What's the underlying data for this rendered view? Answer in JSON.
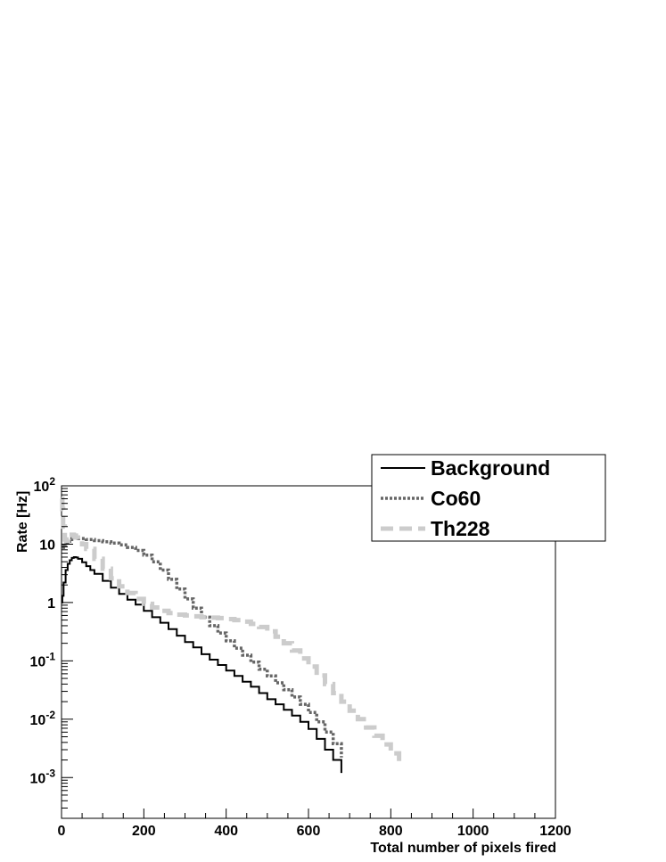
{
  "chart_data": {
    "type": "line",
    "title": "",
    "xlabel": "Total number of pixels fired",
    "ylabel": "Rate [Hz]",
    "xlim": [
      0,
      1200
    ],
    "ylim": [
      0.0002,
      100
    ],
    "yscale": "log",
    "grid": false,
    "legend_position": "top-right",
    "x_ticks": [
      0,
      200,
      400,
      600,
      800,
      1000,
      1200
    ],
    "x_tick_labels": [
      "0",
      "200",
      "400",
      "600",
      "800",
      "1000",
      "1200"
    ],
    "y_ticks": [
      0.001,
      0.01,
      0.1,
      1,
      10,
      100
    ],
    "y_tick_labels": [
      {
        "base": "10",
        "exp": "-3"
      },
      {
        "base": "10",
        "exp": "-2"
      },
      {
        "base": "10",
        "exp": "-1"
      },
      {
        "base": "1",
        "exp": ""
      },
      {
        "base": "10",
        "exp": ""
      },
      {
        "base": "10",
        "exp": "2"
      }
    ],
    "series": [
      {
        "name": "Background",
        "color": "#000000",
        "style": "solid",
        "x": [
          0,
          2,
          5,
          10,
          15,
          20,
          25,
          30,
          35,
          40,
          50,
          60,
          70,
          80,
          100,
          120,
          140,
          160,
          180,
          200,
          220,
          240,
          260,
          280,
          300,
          320,
          340,
          360,
          380,
          400,
          420,
          440,
          460,
          480,
          500,
          520,
          540,
          560,
          580,
          600,
          620,
          640,
          660,
          680
        ],
        "y": [
          1.0,
          1.3,
          2.2,
          3.6,
          4.6,
          5.3,
          5.8,
          6.0,
          5.9,
          5.6,
          4.9,
          4.2,
          3.6,
          3.1,
          2.35,
          1.8,
          1.4,
          1.12,
          0.92,
          0.72,
          0.56,
          0.45,
          0.35,
          0.27,
          0.21,
          0.17,
          0.13,
          0.105,
          0.085,
          0.068,
          0.055,
          0.044,
          0.036,
          0.028,
          0.022,
          0.018,
          0.0145,
          0.0115,
          0.009,
          0.0068,
          0.0046,
          0.003,
          0.002,
          0.0012
        ]
      },
      {
        "name": "Co60",
        "color": "#666666",
        "style": "dotted",
        "x": [
          0,
          2,
          5,
          10,
          15,
          20,
          25,
          30,
          40,
          60,
          80,
          100,
          120,
          140,
          160,
          180,
          200,
          220,
          240,
          260,
          280,
          300,
          320,
          340,
          360,
          380,
          400,
          420,
          440,
          460,
          480,
          500,
          520,
          540,
          560,
          580,
          600,
          620,
          640,
          660,
          680
        ],
        "y": [
          9.0,
          8.8,
          9.6,
          10.5,
          11.2,
          12.0,
          12.5,
          12.8,
          12.5,
          12.0,
          11.5,
          11.0,
          10.4,
          9.7,
          8.8,
          7.8,
          6.5,
          5.0,
          3.6,
          2.5,
          1.7,
          1.15,
          0.8,
          0.56,
          0.4,
          0.3,
          0.22,
          0.165,
          0.125,
          0.095,
          0.072,
          0.055,
          0.042,
          0.032,
          0.024,
          0.018,
          0.013,
          0.009,
          0.006,
          0.0038,
          0.0022
        ]
      },
      {
        "name": "Th228",
        "color": "#cccccc",
        "style": "dashed",
        "x": [
          0,
          2,
          4,
          8,
          12,
          16,
          20,
          25,
          30,
          35,
          40,
          50,
          60,
          80,
          100,
          120,
          140,
          160,
          180,
          200,
          220,
          240,
          260,
          280,
          300,
          320,
          340,
          360,
          380,
          400,
          420,
          440,
          460,
          480,
          500,
          520,
          540,
          560,
          580,
          600,
          620,
          640,
          660,
          680,
          700,
          720,
          740,
          760,
          780,
          800,
          820
        ],
        "y": [
          60,
          40,
          20,
          12,
          11.5,
          12.0,
          13.5,
          14.5,
          14.0,
          13.0,
          12.0,
          10.0,
          8.3,
          5.6,
          3.8,
          2.6,
          1.9,
          1.45,
          1.15,
          0.95,
          0.82,
          0.72,
          0.66,
          0.62,
          0.6,
          0.58,
          0.56,
          0.55,
          0.54,
          0.52,
          0.5,
          0.47,
          0.43,
          0.38,
          0.32,
          0.26,
          0.2,
          0.15,
          0.11,
          0.08,
          0.056,
          0.04,
          0.028,
          0.02,
          0.014,
          0.01,
          0.0072,
          0.0052,
          0.0037,
          0.0026,
          0.0018
        ]
      }
    ]
  }
}
